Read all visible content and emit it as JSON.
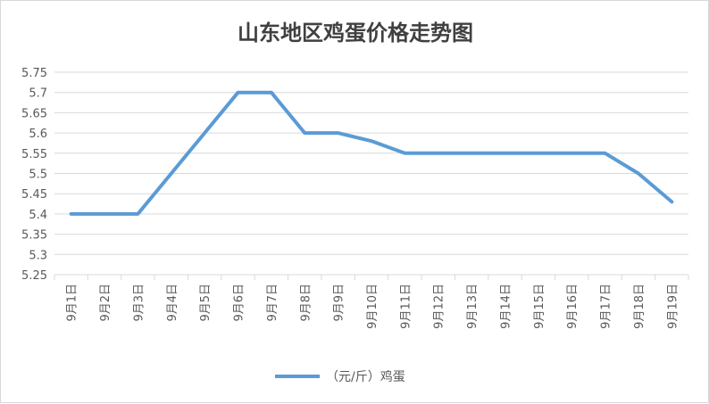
{
  "chart_data": {
    "type": "line",
    "title": "山东地区鸡蛋价格走势图",
    "xlabel": "",
    "ylabel": "",
    "categories": [
      "9月1日",
      "9月2日",
      "9月3日",
      "9月4日",
      "9月5日",
      "9月6日",
      "9月7日",
      "9月8日",
      "9月9日",
      "9月10日",
      "9月11日",
      "9月12日",
      "9月13日",
      "9月14日",
      "9月15日",
      "9月16日",
      "9月17日",
      "9月18日",
      "9月19日"
    ],
    "series": [
      {
        "name": "（元/斤）鸡蛋",
        "color": "#5b9bd5",
        "values": [
          5.4,
          5.4,
          5.4,
          5.5,
          5.6,
          5.7,
          5.7,
          5.6,
          5.6,
          5.58,
          5.55,
          5.55,
          5.55,
          5.55,
          5.55,
          5.55,
          5.55,
          5.5,
          5.43
        ]
      }
    ],
    "ylim": [
      5.25,
      5.75
    ],
    "yticks": [
      "5.25",
      "5.3",
      "5.35",
      "5.4",
      "5.45",
      "5.5",
      "5.55",
      "5.6",
      "5.65",
      "5.7",
      "5.75"
    ],
    "grid": true,
    "legend_position": "bottom"
  },
  "colors": {
    "grid": "#d9d9d9",
    "line": "#5b9bd5"
  }
}
